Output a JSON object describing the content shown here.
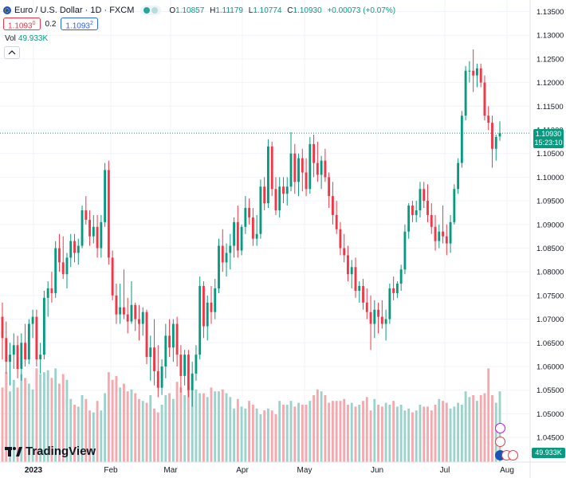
{
  "header": {
    "symbol_title": "Euro / U.S. Dollar · 1D · FXCM",
    "ohlc": [
      {
        "k": "O",
        "v": "1.10857"
      },
      {
        "k": "H",
        "v": "1.11179"
      },
      {
        "k": "L",
        "v": "1.10774"
      },
      {
        "k": "C",
        "v": "1.10930"
      },
      {
        "k": "",
        "v": "+0.00073 (+0.07%)"
      }
    ],
    "sell_price": "1.1093",
    "sell_sup": "0",
    "spread": "0.2",
    "buy_price": "1.1093",
    "buy_sup": "2",
    "vol_label": "Vol",
    "vol_value": "49.933K"
  },
  "logo_text": "TradingView",
  "price_tag": {
    "price": "1.10930",
    "countdown": "15:23:10"
  },
  "vol_tag": "49.933K",
  "colors": {
    "up": "#089981",
    "down": "#f23645",
    "vol_up": "#9ad3cc",
    "vol_down": "#f5a8ad",
    "grid": "#f0f3fa",
    "text": "#131722"
  },
  "chart_data": {
    "type": "candlestick",
    "title": "Euro / U.S. Dollar · 1D · FXCM",
    "ylim": [
      1.04,
      1.136
    ],
    "y_ticks": [
      "1.13500",
      "1.13000",
      "1.12500",
      "1.12000",
      "1.11500",
      "1.11000",
      "1.10500",
      "1.10000",
      "1.09500",
      "1.09000",
      "1.08500",
      "1.08000",
      "1.07500",
      "1.07000",
      "1.06500",
      "1.06000",
      "1.05500",
      "1.05000",
      "1.04500"
    ],
    "x_ticks": [
      "2023",
      "Feb",
      "Mar",
      "Apr",
      "May",
      "Jun",
      "Jul",
      "Aug"
    ],
    "current_price": 1.1093,
    "series": [
      {
        "name": "Price",
        "candles": [
          [
            1.0705,
            1.0735,
            1.0615,
            1.066
          ],
          [
            1.066,
            1.0695,
            1.0585,
            1.061
          ],
          [
            1.061,
            1.065,
            1.056,
            1.0625
          ],
          [
            1.0625,
            1.067,
            1.0595,
            1.0645
          ],
          [
            1.0645,
            1.0665,
            1.0575,
            1.0595
          ],
          [
            1.0595,
            1.067,
            1.057,
            1.065
          ],
          [
            1.065,
            1.069,
            1.06,
            1.0615
          ],
          [
            1.0615,
            1.07,
            1.0605,
            1.069
          ],
          [
            1.069,
            1.072,
            1.066,
            1.0705
          ],
          [
            1.0705,
            1.072,
            1.06,
            1.0615
          ],
          [
            1.0615,
            1.065,
            1.0585,
            1.0625
          ],
          [
            1.0625,
            1.076,
            1.0615,
            1.0745
          ],
          [
            1.0745,
            1.078,
            1.0705,
            1.0765
          ],
          [
            1.0765,
            1.08,
            1.0735,
            1.0755
          ],
          [
            1.0755,
            1.0865,
            1.0745,
            1.085
          ],
          [
            1.085,
            1.088,
            1.08,
            1.082
          ],
          [
            1.082,
            1.0875,
            1.0785,
            1.0795
          ],
          [
            1.0795,
            1.084,
            1.0765,
            1.083
          ],
          [
            1.083,
            1.088,
            1.081,
            1.0865
          ],
          [
            1.0865,
            1.088,
            1.082,
            1.084
          ],
          [
            1.084,
            1.087,
            1.0815,
            1.0855
          ],
          [
            1.0855,
            1.094,
            1.085,
            1.093
          ],
          [
            1.093,
            1.096,
            1.09,
            1.091
          ],
          [
            1.091,
            1.093,
            1.0855,
            1.0875
          ],
          [
            1.0875,
            1.092,
            1.086,
            1.0895
          ],
          [
            1.0895,
            1.092,
            1.083,
            1.085
          ],
          [
            1.085,
            1.092,
            1.083,
            1.0905
          ],
          [
            1.0905,
            1.103,
            1.0895,
            1.1015
          ],
          [
            1.1015,
            1.1035,
            1.0815,
            1.083
          ],
          [
            1.083,
            1.0845,
            1.074,
            1.075
          ],
          [
            1.075,
            1.0775,
            1.069,
            1.071
          ],
          [
            1.071,
            1.0775,
            1.069,
            1.0725
          ],
          [
            1.0725,
            1.0805,
            1.07,
            1.071
          ],
          [
            1.071,
            1.0745,
            1.067,
            1.0695
          ],
          [
            1.0695,
            1.078,
            1.069,
            1.073
          ],
          [
            1.073,
            1.0735,
            1.0675,
            1.07
          ],
          [
            1.07,
            1.073,
            1.0655,
            1.069
          ],
          [
            1.069,
            1.0725,
            1.0665,
            1.0715
          ],
          [
            1.0715,
            1.072,
            1.0605,
            1.062
          ],
          [
            1.062,
            1.0665,
            1.057,
            1.064
          ],
          [
            1.064,
            1.07,
            1.056,
            1.059
          ],
          [
            1.059,
            1.0645,
            1.0535,
            1.0555
          ],
          [
            1.0555,
            1.0615,
            1.054,
            1.06
          ],
          [
            1.06,
            1.069,
            1.0575,
            1.0665
          ],
          [
            1.0665,
            1.07,
            1.062,
            1.064
          ],
          [
            1.064,
            1.07,
            1.061,
            1.069
          ],
          [
            1.069,
            1.0705,
            1.06,
            1.0625
          ],
          [
            1.0625,
            1.0645,
            1.0545,
            1.058
          ],
          [
            1.058,
            1.0635,
            1.056,
            1.0625
          ],
          [
            1.0625,
            1.0635,
            1.0535,
            1.055
          ],
          [
            1.055,
            1.061,
            1.0515,
            1.0585
          ],
          [
            1.0585,
            1.0645,
            1.057,
            1.0625
          ],
          [
            1.0625,
            1.079,
            1.0615,
            1.077
          ],
          [
            1.077,
            1.078,
            1.066,
            1.0685
          ],
          [
            1.0685,
            1.075,
            1.0655,
            1.0735
          ],
          [
            1.0735,
            1.077,
            1.069,
            1.0715
          ],
          [
            1.0715,
            1.0785,
            1.07,
            1.0765
          ],
          [
            1.0765,
            1.087,
            1.0755,
            1.0855
          ],
          [
            1.0855,
            1.089,
            1.08,
            1.082
          ],
          [
            1.082,
            1.086,
            1.079,
            1.084
          ],
          [
            1.084,
            1.088,
            1.0805,
            1.0855
          ],
          [
            1.0855,
            1.0915,
            1.083,
            1.0905
          ],
          [
            1.0905,
            1.094,
            1.083,
            1.0845
          ],
          [
            1.0845,
            1.09,
            1.0835,
            1.0895
          ],
          [
            1.0895,
            1.096,
            1.088,
            1.0935
          ],
          [
            1.0935,
            1.0955,
            1.09,
            1.0915
          ],
          [
            1.0915,
            1.0935,
            1.0855,
            1.087
          ],
          [
            1.087,
            1.092,
            1.0855,
            1.088
          ],
          [
            1.088,
            1.0995,
            1.087,
            1.098
          ],
          [
            1.098,
            1.1,
            1.093,
            1.0945
          ],
          [
            1.0945,
            1.108,
            1.0935,
            1.1065
          ],
          [
            1.1065,
            1.1075,
            1.096,
            1.0975
          ],
          [
            1.0975,
            1.1,
            1.092,
            1.093
          ],
          [
            1.093,
            1.1,
            1.0915,
            1.098
          ],
          [
            1.098,
            1.1,
            1.0945,
            1.0965
          ],
          [
            1.0965,
            1.1,
            1.094,
            1.098
          ],
          [
            1.098,
            1.1095,
            1.097,
            1.105
          ],
          [
            1.105,
            1.107,
            1.0965,
            1.099
          ],
          [
            1.099,
            1.105,
            1.096,
            1.104
          ],
          [
            1.104,
            1.106,
            1.097,
            1.101
          ],
          [
            1.101,
            1.104,
            1.096,
            1.0975
          ],
          [
            1.0975,
            1.1085,
            1.0965,
            1.107
          ],
          [
            1.107,
            1.109,
            1.1,
            1.103
          ],
          [
            1.103,
            1.1075,
            1.099,
            1.1005
          ],
          [
            1.1005,
            1.1045,
            1.0975,
            1.1035
          ],
          [
            1.1035,
            1.106,
            1.099,
            1.1
          ],
          [
            1.1,
            1.101,
            1.0935,
            1.096
          ],
          [
            1.096,
            1.099,
            1.09,
            1.092
          ],
          [
            1.092,
            1.095,
            1.088,
            1.089
          ],
          [
            1.089,
            1.0905,
            1.0835,
            1.085
          ],
          [
            1.085,
            1.088,
            1.082,
            1.0835
          ],
          [
            1.0835,
            1.0855,
            1.078,
            1.0795
          ],
          [
            1.0795,
            1.0825,
            1.0765,
            1.081
          ],
          [
            1.081,
            1.083,
            1.0745,
            1.076
          ],
          [
            1.076,
            1.078,
            1.0735,
            1.077
          ],
          [
            1.077,
            1.0785,
            1.072,
            1.0735
          ],
          [
            1.0735,
            1.0765,
            1.07,
            1.0715
          ],
          [
            1.0715,
            1.075,
            1.0635,
            1.069
          ],
          [
            1.069,
            1.074,
            1.066,
            1.072
          ],
          [
            1.072,
            1.0735,
            1.067,
            1.0705
          ],
          [
            1.0705,
            1.074,
            1.068,
            1.069
          ],
          [
            1.069,
            1.072,
            1.0655,
            1.07
          ],
          [
            1.07,
            1.0775,
            1.069,
            1.0765
          ],
          [
            1.0765,
            1.079,
            1.074,
            1.0755
          ],
          [
            1.0755,
            1.078,
            1.0745,
            1.0775
          ],
          [
            1.0775,
            1.0815,
            1.076,
            1.0805
          ],
          [
            1.0805,
            1.09,
            1.0795,
            1.0885
          ],
          [
            1.0885,
            1.0945,
            1.087,
            1.094
          ],
          [
            1.094,
            1.095,
            1.0905,
            1.092
          ],
          [
            1.092,
            1.095,
            1.0905,
            1.093
          ],
          [
            1.093,
            1.099,
            1.0915,
            1.0975
          ],
          [
            1.0975,
            1.099,
            1.0935,
            1.095
          ],
          [
            1.095,
            1.0985,
            1.0905,
            1.092
          ],
          [
            1.092,
            1.0945,
            1.088,
            1.0895
          ],
          [
            1.0895,
            1.092,
            1.0845,
            1.0865
          ],
          [
            1.0865,
            1.09,
            1.085,
            1.0885
          ],
          [
            1.0885,
            1.094,
            1.086,
            1.0875
          ],
          [
            1.0875,
            1.09,
            1.0835,
            1.086
          ],
          [
            1.086,
            1.092,
            1.084,
            1.0905
          ],
          [
            1.0905,
            1.0985,
            1.09,
            1.0975
          ],
          [
            1.0975,
            1.104,
            1.0965,
            1.103
          ],
          [
            1.103,
            1.114,
            1.102,
            1.113
          ],
          [
            1.113,
            1.1235,
            1.112,
            1.1225
          ],
          [
            1.1225,
            1.1245,
            1.12,
            1.1225
          ],
          [
            1.1225,
            1.127,
            1.118,
            1.1215
          ],
          [
            1.1215,
            1.124,
            1.119,
            1.123
          ],
          [
            1.123,
            1.124,
            1.119,
            1.12
          ],
          [
            1.12,
            1.1215,
            1.112,
            1.113
          ],
          [
            1.113,
            1.115,
            1.11,
            1.1115
          ],
          [
            1.1115,
            1.113,
            1.102,
            1.106
          ],
          [
            1.106,
            1.109,
            1.1035,
            1.1085
          ],
          [
            1.1086,
            1.1118,
            1.1077,
            1.1093
          ]
        ]
      },
      {
        "name": "Vol",
        "values": [
          39,
          47,
          37,
          43,
          39,
          46,
          44,
          41,
          38,
          49,
          46,
          47,
          48,
          44,
          49,
          41,
          46,
          43,
          33,
          30,
          29,
          35,
          33,
          27,
          26,
          32,
          27,
          36,
          47,
          43,
          45,
          39,
          41,
          37,
          38,
          36,
          33,
          32,
          31,
          35,
          28,
          26,
          30,
          35,
          36,
          33,
          42,
          39,
          35,
          40,
          39,
          38,
          36,
          36,
          34,
          39,
          37,
          37,
          38,
          36,
          34,
          28,
          33,
          29,
          28,
          32,
          30,
          28,
          25,
          27,
          28,
          27,
          25,
          32,
          30,
          30,
          32,
          29,
          31,
          30,
          30,
          32,
          35,
          38,
          37,
          35,
          31,
          32,
          32,
          32,
          33,
          30,
          31,
          29,
          30,
          32,
          34,
          27,
          33,
          30,
          29,
          31,
          30,
          32,
          29,
          30,
          27,
          28,
          26,
          27,
          30,
          29,
          29,
          27,
          30,
          33,
          32,
          31,
          28,
          29,
          31,
          30,
          37,
          34,
          35,
          32,
          35,
          36,
          49,
          35,
          31,
          37
        ],
        "max": 75
      }
    ]
  }
}
